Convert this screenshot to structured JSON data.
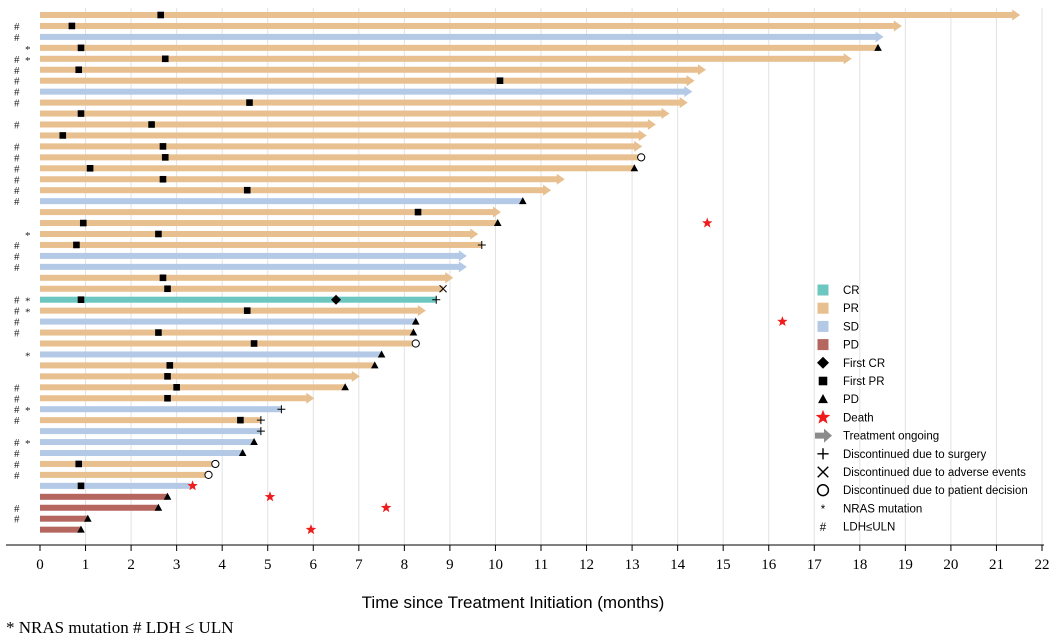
{
  "chart_data": {
    "type": "swimmer",
    "xlabel": "Time since Treatment Initiation (months)",
    "xlim": [
      0,
      22
    ],
    "xticks": [
      0,
      1,
      2,
      3,
      4,
      5,
      6,
      7,
      8,
      9,
      10,
      11,
      12,
      13,
      14,
      15,
      16,
      17,
      18,
      19,
      20,
      21,
      22
    ],
    "grid": "vertical",
    "colors": {
      "CR": "#6cc7c0",
      "PR": "#e8bf8e",
      "SD": "#b3c9e6",
      "PD": "#b4665f",
      "marker": "#000000",
      "death": "#ee1c1c",
      "ongoing": "#8c8c8c"
    },
    "legend": {
      "position": "right",
      "items": [
        {
          "key": "CR",
          "label": "CR",
          "symbol": "swatch-CR"
        },
        {
          "key": "PR",
          "label": "PR",
          "symbol": "swatch-PR"
        },
        {
          "key": "SD",
          "label": "SD",
          "symbol": "swatch-SD"
        },
        {
          "key": "PD",
          "label": "PD",
          "symbol": "swatch-PD"
        },
        {
          "key": "first_cr",
          "label": "First CR",
          "symbol": "diamond"
        },
        {
          "key": "first_pr",
          "label": "First PR",
          "symbol": "square"
        },
        {
          "key": "pd_event",
          "label": "PD",
          "symbol": "triangle"
        },
        {
          "key": "death",
          "label": "Death",
          "symbol": "star"
        },
        {
          "key": "ongoing",
          "label": "Treatment ongoing",
          "symbol": "arrow"
        },
        {
          "key": "surgery",
          "label": "Discontinued due to surgery",
          "symbol": "plus"
        },
        {
          "key": "adverse",
          "label": "Discontinued due to adverse events",
          "symbol": "cross"
        },
        {
          "key": "decision",
          "label": "Discontinued due to patient decision",
          "symbol": "circle"
        },
        {
          "key": "nras",
          "label": "NRAS mutation",
          "symbol": "asterisk"
        },
        {
          "key": "ldh",
          "label": "LDH≤ULN",
          "symbol": "hash"
        }
      ]
    },
    "flag_symbols": {
      "ldh": "#",
      "nras": "*"
    },
    "patients": [
      {
        "response": "PR",
        "end": 21.5,
        "ongoing": true,
        "ldh": false,
        "nras": false,
        "first_pr": 2.65
      },
      {
        "response": "PR",
        "end": 18.9,
        "ongoing": true,
        "ldh": true,
        "nras": false,
        "first_pr": 0.7
      },
      {
        "response": "SD",
        "end": 18.5,
        "ongoing": true,
        "ldh": true,
        "nras": false
      },
      {
        "response": "PR",
        "end": 18.4,
        "ongoing": false,
        "ldh": false,
        "nras": true,
        "first_pr": 0.9,
        "pd": 18.4
      },
      {
        "response": "PR",
        "end": 17.8,
        "ongoing": true,
        "ldh": true,
        "nras": true,
        "first_pr": 2.75
      },
      {
        "response": "PR",
        "end": 14.6,
        "ongoing": true,
        "ldh": true,
        "nras": false,
        "first_pr": 0.85
      },
      {
        "response": "PR",
        "end": 14.35,
        "ongoing": true,
        "ldh": true,
        "nras": false,
        "first_pr": 10.1
      },
      {
        "response": "SD",
        "end": 14.3,
        "ongoing": true,
        "ldh": true,
        "nras": false
      },
      {
        "response": "PR",
        "end": 14.2,
        "ongoing": true,
        "ldh": true,
        "nras": false,
        "first_pr": 4.6
      },
      {
        "response": "PR",
        "end": 13.8,
        "ongoing": true,
        "ldh": false,
        "nras": false,
        "first_pr": 0.9
      },
      {
        "response": "PR",
        "end": 13.5,
        "ongoing": true,
        "ldh": true,
        "nras": false,
        "first_pr": 2.45
      },
      {
        "response": "PR",
        "end": 13.3,
        "ongoing": true,
        "ldh": false,
        "nras": false,
        "first_pr": 0.5
      },
      {
        "response": "PR",
        "end": 13.2,
        "ongoing": true,
        "ldh": true,
        "nras": false,
        "first_pr": 2.7
      },
      {
        "response": "PR",
        "end": 13.2,
        "ongoing": false,
        "ldh": true,
        "nras": false,
        "first_pr": 2.75,
        "discontinued": "decision"
      },
      {
        "response": "PR",
        "end": 13.05,
        "ongoing": false,
        "ldh": true,
        "nras": false,
        "first_pr": 1.1,
        "pd": 13.05
      },
      {
        "response": "PR",
        "end": 11.5,
        "ongoing": true,
        "ldh": true,
        "nras": false,
        "first_pr": 2.7
      },
      {
        "response": "PR",
        "end": 11.2,
        "ongoing": true,
        "ldh": true,
        "nras": false,
        "first_pr": 4.55
      },
      {
        "response": "SD",
        "end": 10.6,
        "ongoing": false,
        "ldh": true,
        "nras": false,
        "pd": 10.6
      },
      {
        "response": "PR",
        "end": 10.1,
        "ongoing": true,
        "ldh": false,
        "nras": false,
        "first_pr": 8.3
      },
      {
        "response": "PR",
        "end": 10.05,
        "ongoing": false,
        "ldh": false,
        "nras": false,
        "first_pr": 0.95,
        "pd": 10.05,
        "death": 14.65
      },
      {
        "response": "PR",
        "end": 9.6,
        "ongoing": true,
        "ldh": false,
        "nras": true,
        "first_pr": 2.6
      },
      {
        "response": "PR",
        "end": 9.7,
        "ongoing": false,
        "ldh": true,
        "nras": false,
        "first_pr": 0.8,
        "discontinued": "surgery"
      },
      {
        "response": "SD",
        "end": 9.35,
        "ongoing": true,
        "ldh": true,
        "nras": false
      },
      {
        "response": "SD",
        "end": 9.35,
        "ongoing": true,
        "ldh": true,
        "nras": false
      },
      {
        "response": "PR",
        "end": 9.05,
        "ongoing": true,
        "ldh": false,
        "nras": false,
        "first_pr": 2.7
      },
      {
        "response": "PR",
        "end": 8.85,
        "ongoing": false,
        "ldh": false,
        "nras": false,
        "first_pr": 2.8,
        "discontinued": "adverse"
      },
      {
        "response": "CR",
        "end": 8.7,
        "ongoing": false,
        "ldh": true,
        "nras": true,
        "first_pr": 0.9,
        "first_cr": 6.5,
        "discontinued": "surgery"
      },
      {
        "response": "PR",
        "end": 8.45,
        "ongoing": true,
        "ldh": true,
        "nras": true,
        "first_pr": 4.55
      },
      {
        "response": "SD",
        "end": 8.25,
        "ongoing": false,
        "ldh": true,
        "nras": false,
        "pd": 8.25,
        "death": 16.3
      },
      {
        "response": "PR",
        "end": 8.2,
        "ongoing": false,
        "ldh": true,
        "nras": false,
        "first_pr": 2.6,
        "pd": 8.2
      },
      {
        "response": "PR",
        "end": 8.25,
        "ongoing": false,
        "ldh": false,
        "nras": false,
        "first_pr": 4.7,
        "discontinued": "decision"
      },
      {
        "response": "SD",
        "end": 7.5,
        "ongoing": false,
        "ldh": false,
        "nras": true,
        "pd": 7.5
      },
      {
        "response": "PR",
        "end": 7.35,
        "ongoing": false,
        "ldh": false,
        "nras": false,
        "first_pr": 2.85,
        "pd": 7.35
      },
      {
        "response": "PR",
        "end": 7.0,
        "ongoing": true,
        "ldh": false,
        "nras": false,
        "first_pr": 2.8
      },
      {
        "response": "PR",
        "end": 6.7,
        "ongoing": false,
        "ldh": true,
        "nras": false,
        "first_pr": 3.0,
        "pd": 6.7
      },
      {
        "response": "PR",
        "end": 6.0,
        "ongoing": true,
        "ldh": true,
        "nras": false,
        "first_pr": 2.8
      },
      {
        "response": "SD",
        "end": 5.3,
        "ongoing": false,
        "ldh": true,
        "nras": true,
        "discontinued": "surgery"
      },
      {
        "response": "PR",
        "end": 4.85,
        "ongoing": false,
        "ldh": true,
        "nras": false,
        "first_pr": 4.4,
        "discontinued": "surgery"
      },
      {
        "response": "SD",
        "end": 4.85,
        "ongoing": false,
        "ldh": false,
        "nras": false,
        "discontinued": "surgery"
      },
      {
        "response": "SD",
        "end": 4.7,
        "ongoing": false,
        "ldh": true,
        "nras": true,
        "pd": 4.7
      },
      {
        "response": "SD",
        "end": 4.45,
        "ongoing": false,
        "ldh": true,
        "nras": false,
        "pd": 4.45
      },
      {
        "response": "PR",
        "end": 3.85,
        "ongoing": false,
        "ldh": true,
        "nras": false,
        "first_pr": 0.85,
        "discontinued": "decision"
      },
      {
        "response": "PR",
        "end": 3.7,
        "ongoing": false,
        "ldh": true,
        "nras": false,
        "discontinued": "decision"
      },
      {
        "response": "SD",
        "end": 3.3,
        "ongoing": false,
        "ldh": false,
        "nras": false,
        "first_pr": 0.9,
        "death": 3.35
      },
      {
        "response": "PD",
        "end": 2.8,
        "ongoing": false,
        "ldh": false,
        "nras": false,
        "pd": 2.8,
        "death": 5.05
      },
      {
        "response": "PD",
        "end": 2.6,
        "ongoing": false,
        "ldh": true,
        "nras": false,
        "pd": 2.6,
        "death": 7.6
      },
      {
        "response": "PD",
        "end": 1.05,
        "ongoing": false,
        "ldh": true,
        "nras": false,
        "pd": 1.05
      },
      {
        "response": "PD",
        "end": 0.9,
        "ongoing": false,
        "ldh": false,
        "nras": false,
        "pd": 0.9,
        "death": 5.95
      }
    ]
  },
  "footnote": "* NRAS mutation  # LDH ≤ ULN"
}
